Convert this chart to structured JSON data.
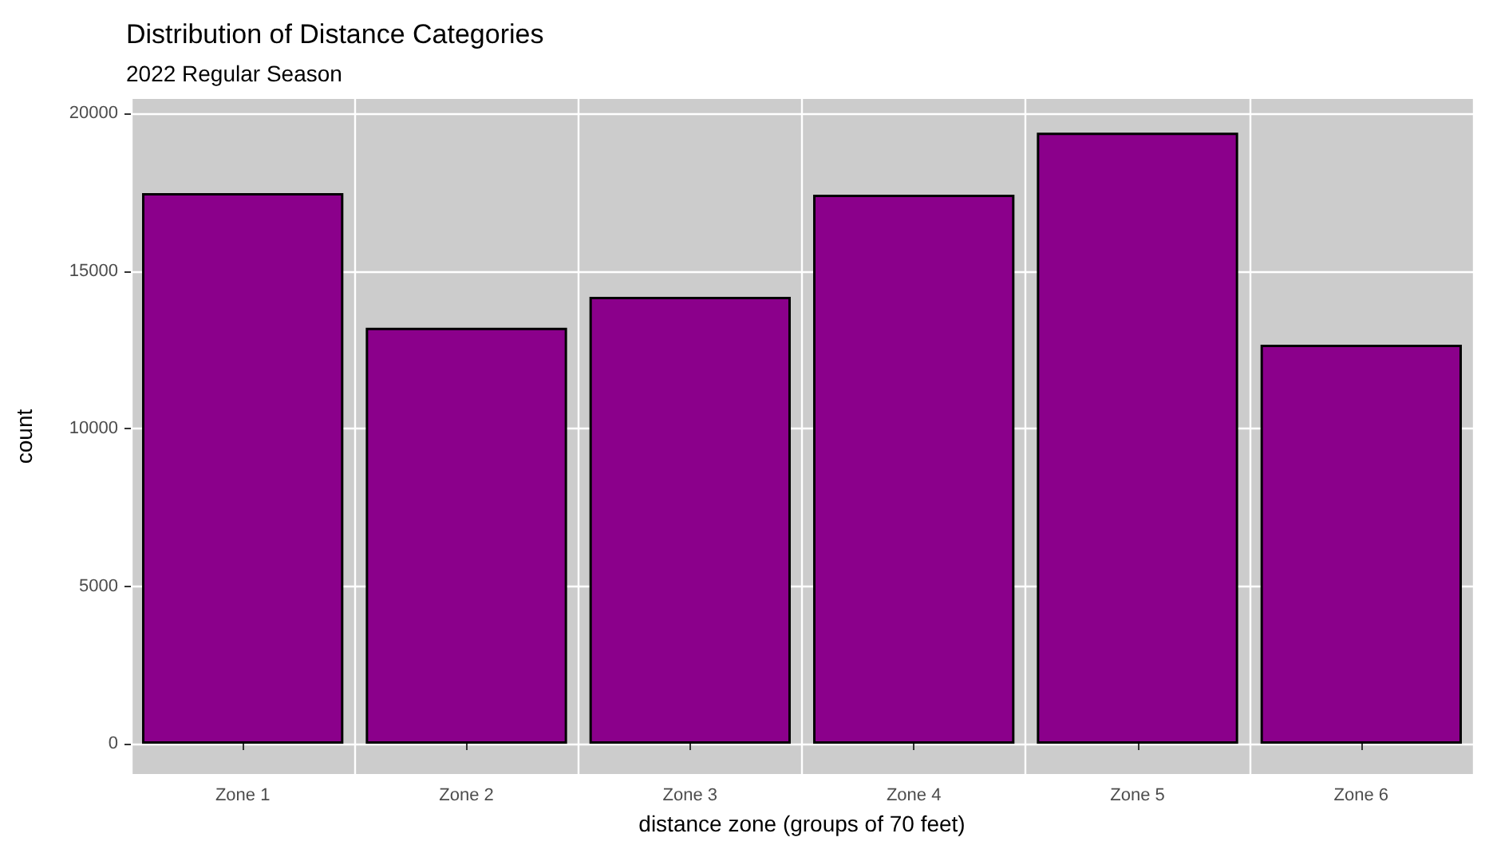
{
  "chart_data": {
    "type": "bar",
    "title": "Distribution of Distance Categories",
    "subtitle": "2022 Regular Season",
    "xlabel": "distance zone (groups of 70 feet)",
    "ylabel": "count",
    "categories": [
      "Zone 1",
      "Zone 2",
      "Zone 3",
      "Zone 4",
      "Zone 5",
      "Zone 6"
    ],
    "values": [
      17470,
      13200,
      14180,
      17420,
      19390,
      12660
    ],
    "color": "#8b008b",
    "ylim": [
      -960,
      20460
    ],
    "yticks": [
      0,
      5000,
      10000,
      15000,
      20000
    ],
    "grid": true
  }
}
